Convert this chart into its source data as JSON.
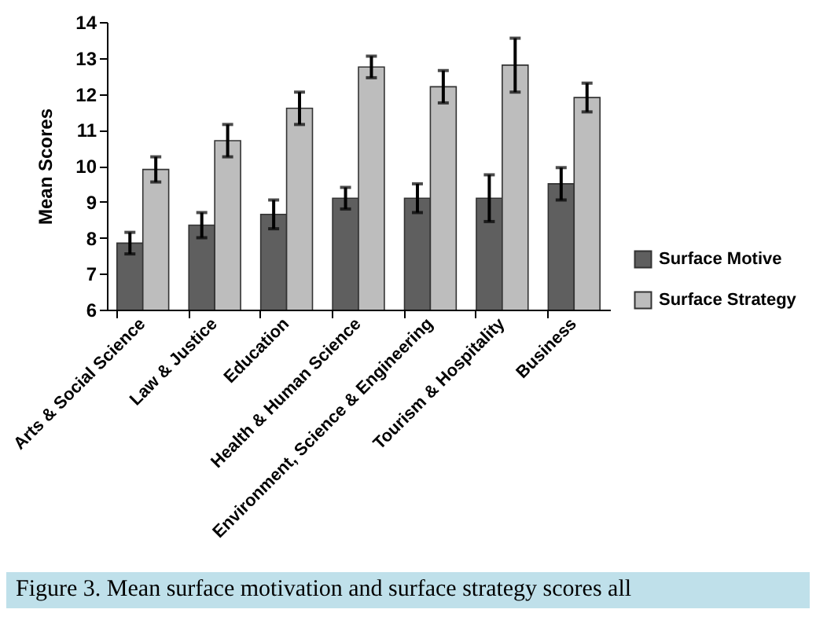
{
  "chart_data": {
    "type": "bar",
    "ylabel": "Mean Scores",
    "categories": [
      "Arts & Social Science",
      "Law & Justice",
      "Education",
      "Health & Human Science",
      "Environment, Science & Engineering",
      "Tourism & Hospitality",
      "Business"
    ],
    "series": [
      {
        "name": "Surface Motive",
        "color": "#5f5f5f",
        "values": [
          7.85,
          8.35,
          8.65,
          9.1,
          9.1,
          9.1,
          9.5
        ],
        "errors": [
          0.3,
          0.35,
          0.4,
          0.3,
          0.4,
          0.65,
          0.45
        ]
      },
      {
        "name": "Surface Strategy",
        "color": "#bdbdbd",
        "values": [
          9.9,
          10.7,
          11.6,
          12.75,
          12.2,
          12.8,
          11.9
        ],
        "errors": [
          0.35,
          0.45,
          0.45,
          0.3,
          0.45,
          0.75,
          0.4
        ]
      }
    ],
    "ylim": [
      6,
      14
    ],
    "yticks": [
      6,
      7,
      8,
      9,
      10,
      11,
      12,
      13,
      14
    ],
    "grid": false,
    "legend": "right",
    "annotations": [
      "Figure 3. Mean surface motivation and surface strategy scores all"
    ]
  }
}
